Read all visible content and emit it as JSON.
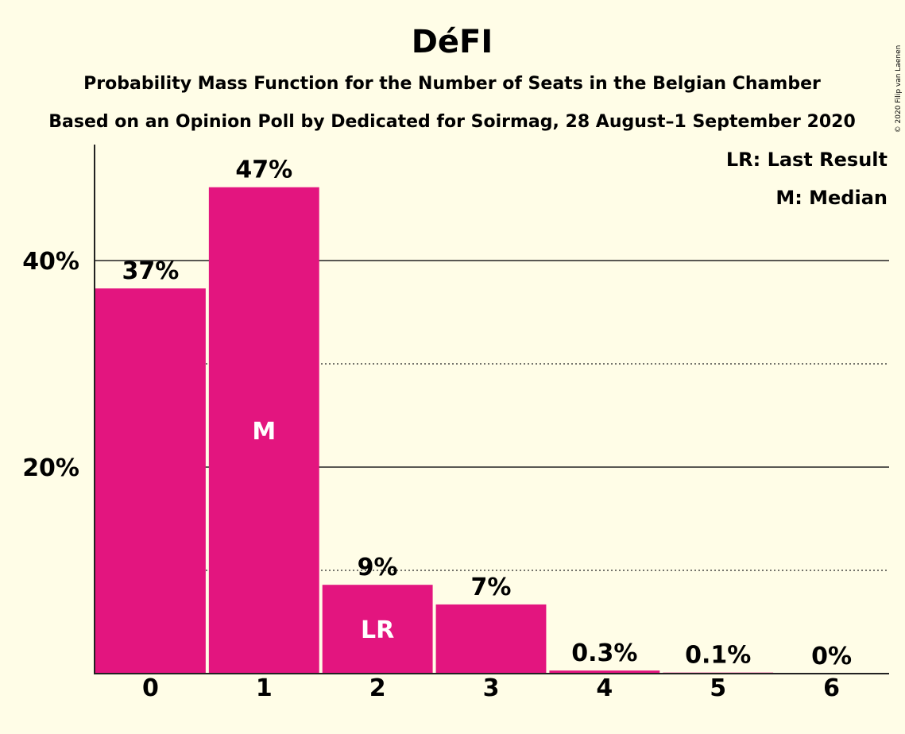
{
  "chart_data": {
    "type": "bar",
    "title": "DéFI",
    "subtitle": "Probability Mass Function for the Number of Seats in the Belgian Chamber",
    "subtitle2": "Based on an Opinion Poll by Dedicated for Soirmag, 28 August–1 September 2020",
    "categories": [
      "0",
      "1",
      "2",
      "3",
      "4",
      "5",
      "6"
    ],
    "values": [
      37.3,
      47.1,
      8.6,
      6.7,
      0.3,
      0.1,
      0
    ],
    "value_labels": [
      "37%",
      "47%",
      "9%",
      "7%",
      "0.3%",
      "0.1%",
      "0%"
    ],
    "bar_markers": [
      "",
      "M",
      "LR",
      "",
      "",
      "",
      ""
    ],
    "ylim": [
      0,
      50
    ],
    "yticks": [
      20,
      40
    ],
    "ytick_labels": [
      "20%",
      "40%"
    ],
    "gridlines_solid": [
      20,
      40
    ],
    "gridlines_dotted": [
      10,
      30
    ],
    "legend": [
      "LR: Last Result",
      "M: Median"
    ],
    "legend_position": "top-right",
    "bar_color": "#E3157F",
    "copyright": "© 2020 Filip van Laenen"
  }
}
